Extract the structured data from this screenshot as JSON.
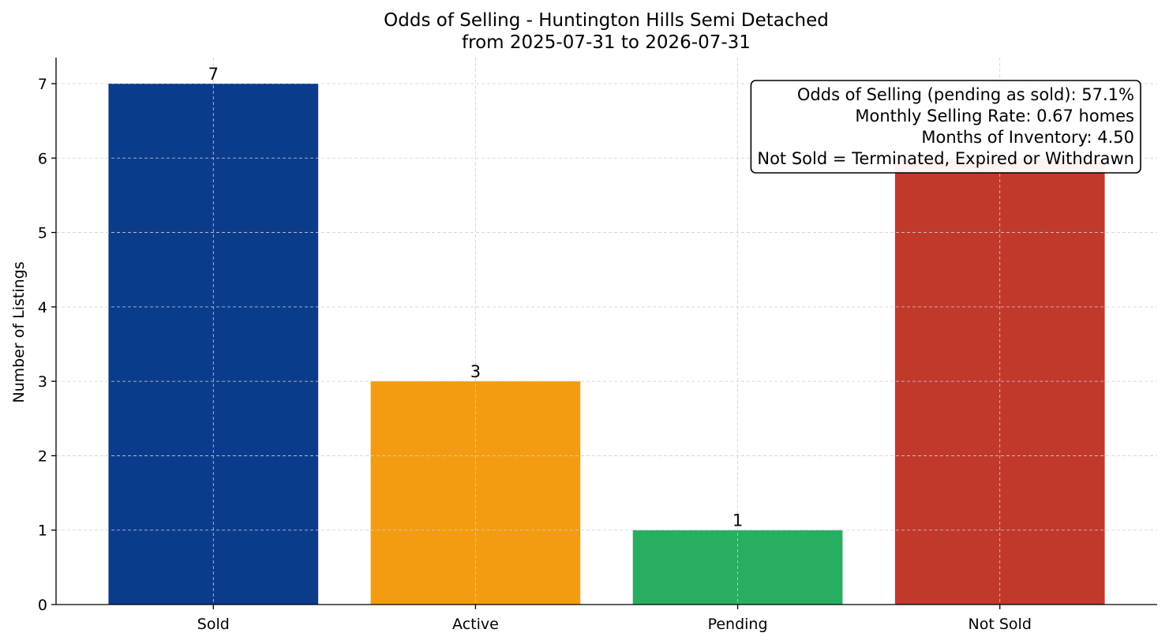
{
  "chart_data": {
    "type": "bar",
    "title": "Odds of Selling - Huntington Hills Semi Detached",
    "subtitle": "from 2025-07-31 to 2026-07-31",
    "xlabel": "",
    "ylabel": "Number of Listings",
    "categories": [
      "Sold",
      "Active",
      "Pending",
      "Not Sold"
    ],
    "values": [
      7,
      3,
      1,
      6
    ],
    "colors": [
      "#0b3c8c",
      "#f39c12",
      "#27ae60",
      "#c0392b"
    ],
    "ylim": [
      0,
      7.35
    ],
    "yticks": [
      0,
      1,
      2,
      3,
      4,
      5,
      6,
      7
    ],
    "grid": true,
    "data_labels": [
      "7",
      "3",
      "1",
      ""
    ],
    "info_box": {
      "placement": "top-right",
      "lines": [
        "Odds of Selling (pending as sold): 57.1%",
        "Monthly Selling Rate: 0.67 homes",
        "Months of Inventory: 4.50",
        "Not Sold = Terminated, Expired or Withdrawn"
      ]
    }
  }
}
